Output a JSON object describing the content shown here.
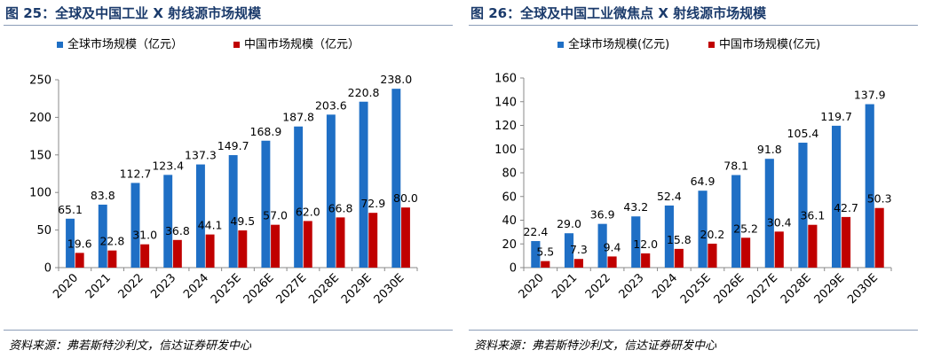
{
  "charts": [
    {
      "title": "图 25：全球及中国工业 X 射线源市场规模",
      "source": "资料来源：弗若斯特沙利文，信达证券研发中心",
      "colors": {
        "global": "#1f6fc5",
        "china": "#c00000"
      },
      "chart_data": {
        "type": "bar",
        "categories": [
          "2020",
          "2021",
          "2022",
          "2023",
          "2024",
          "2025E",
          "2026E",
          "2027E",
          "2028E",
          "2029E",
          "2030E"
        ],
        "series": [
          {
            "name": "全球市场规模（亿元）",
            "values": [
              65.1,
              83.8,
              112.7,
              123.4,
              137.3,
              149.7,
              168.9,
              187.8,
              203.6,
              220.8,
              238.0
            ]
          },
          {
            "name": "中国市场规模（亿元）",
            "values": [
              19.6,
              22.8,
              31.0,
              36.8,
              44.1,
              49.5,
              57.0,
              62.0,
              66.8,
              72.9,
              80.0
            ]
          }
        ],
        "ylim": [
          0,
          250
        ],
        "yticks": [
          0,
          50,
          100,
          150,
          200,
          250
        ],
        "legend": "top-left",
        "grid": false
      }
    },
    {
      "title": "图 26：全球及中国工业微焦点 X 射线源市场规模",
      "source": "资料来源：弗若斯特沙利文，信达证券研发中心",
      "colors": {
        "global": "#1f6fc5",
        "china": "#c00000"
      },
      "chart_data": {
        "type": "bar",
        "categories": [
          "2020",
          "2021",
          "2022",
          "2023",
          "2024",
          "2025E",
          "2026E",
          "2027E",
          "2028E",
          "2029E",
          "2030E"
        ],
        "series": [
          {
            "name": "全球市场规模(亿元)",
            "values": [
              22.4,
              29.0,
              36.9,
              43.2,
              52.4,
              64.9,
              78.1,
              91.8,
              105.4,
              119.7,
              137.9
            ]
          },
          {
            "name": "中国市场规模(亿元)",
            "values": [
              5.5,
              7.3,
              9.4,
              12.0,
              15.8,
              20.2,
              25.2,
              30.4,
              36.1,
              42.7,
              50.3
            ]
          }
        ],
        "ylim": [
          0,
          160
        ],
        "yticks": [
          0,
          20,
          40,
          60,
          80,
          100,
          120,
          140,
          160
        ],
        "legend": "top-left",
        "grid": false
      }
    }
  ]
}
